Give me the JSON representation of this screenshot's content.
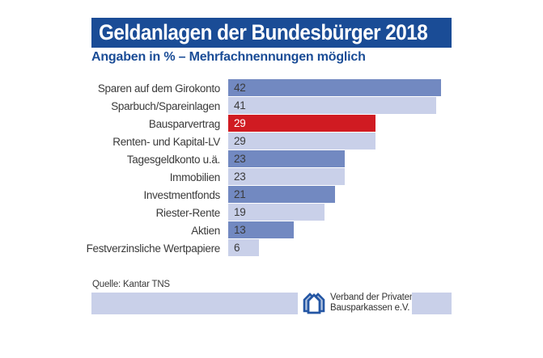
{
  "header": {
    "title": "Geldanlagen der Bundesbürger 2018",
    "subtitle": "Angaben in % – Mehrfachnennungen möglich"
  },
  "chart_data": {
    "type": "bar",
    "orientation": "horizontal",
    "title": "Geldanlagen der Bundesbürger 2018",
    "subtitle": "Angaben in % – Mehrfachnennungen möglich",
    "unit": "%",
    "xlabel": "",
    "ylabel": "",
    "xlim": [
      0,
      45
    ],
    "grid": false,
    "legend": "none",
    "value_labels": "inside-left",
    "categories": [
      "Sparen auf dem Girokonto",
      "Sparbuch/Spareinlagen",
      "Bausparvertrag",
      "Renten- und Kapital-LV",
      "Tagesgeldkonto u.ä.",
      "Immobilien",
      "Investmentfonds",
      "Riester-Rente",
      "Aktien",
      "Festverzinsliche Wertpapiere"
    ],
    "values": [
      42,
      41,
      29,
      29,
      23,
      23,
      21,
      19,
      13,
      6
    ],
    "highlight_index": 2,
    "highlight_category": "Bausparvertrag"
  },
  "footer": {
    "source": "Quelle: Kantar TNS",
    "association_line1": "Verband der Privaten",
    "association_line2": "Bausparkassen e.V.",
    "logo": "houses-logo"
  },
  "colors": {
    "brand_blue": "#1a4c96",
    "bar_dark": "#7289c1",
    "bar_light": "#c9d0e9",
    "bar_highlight_red": "#d01b22",
    "footer_band": "#c9d0e9",
    "title_text": "#ffffff",
    "body_text": "#3a3a3a",
    "logo_blue": "#2456a4"
  }
}
